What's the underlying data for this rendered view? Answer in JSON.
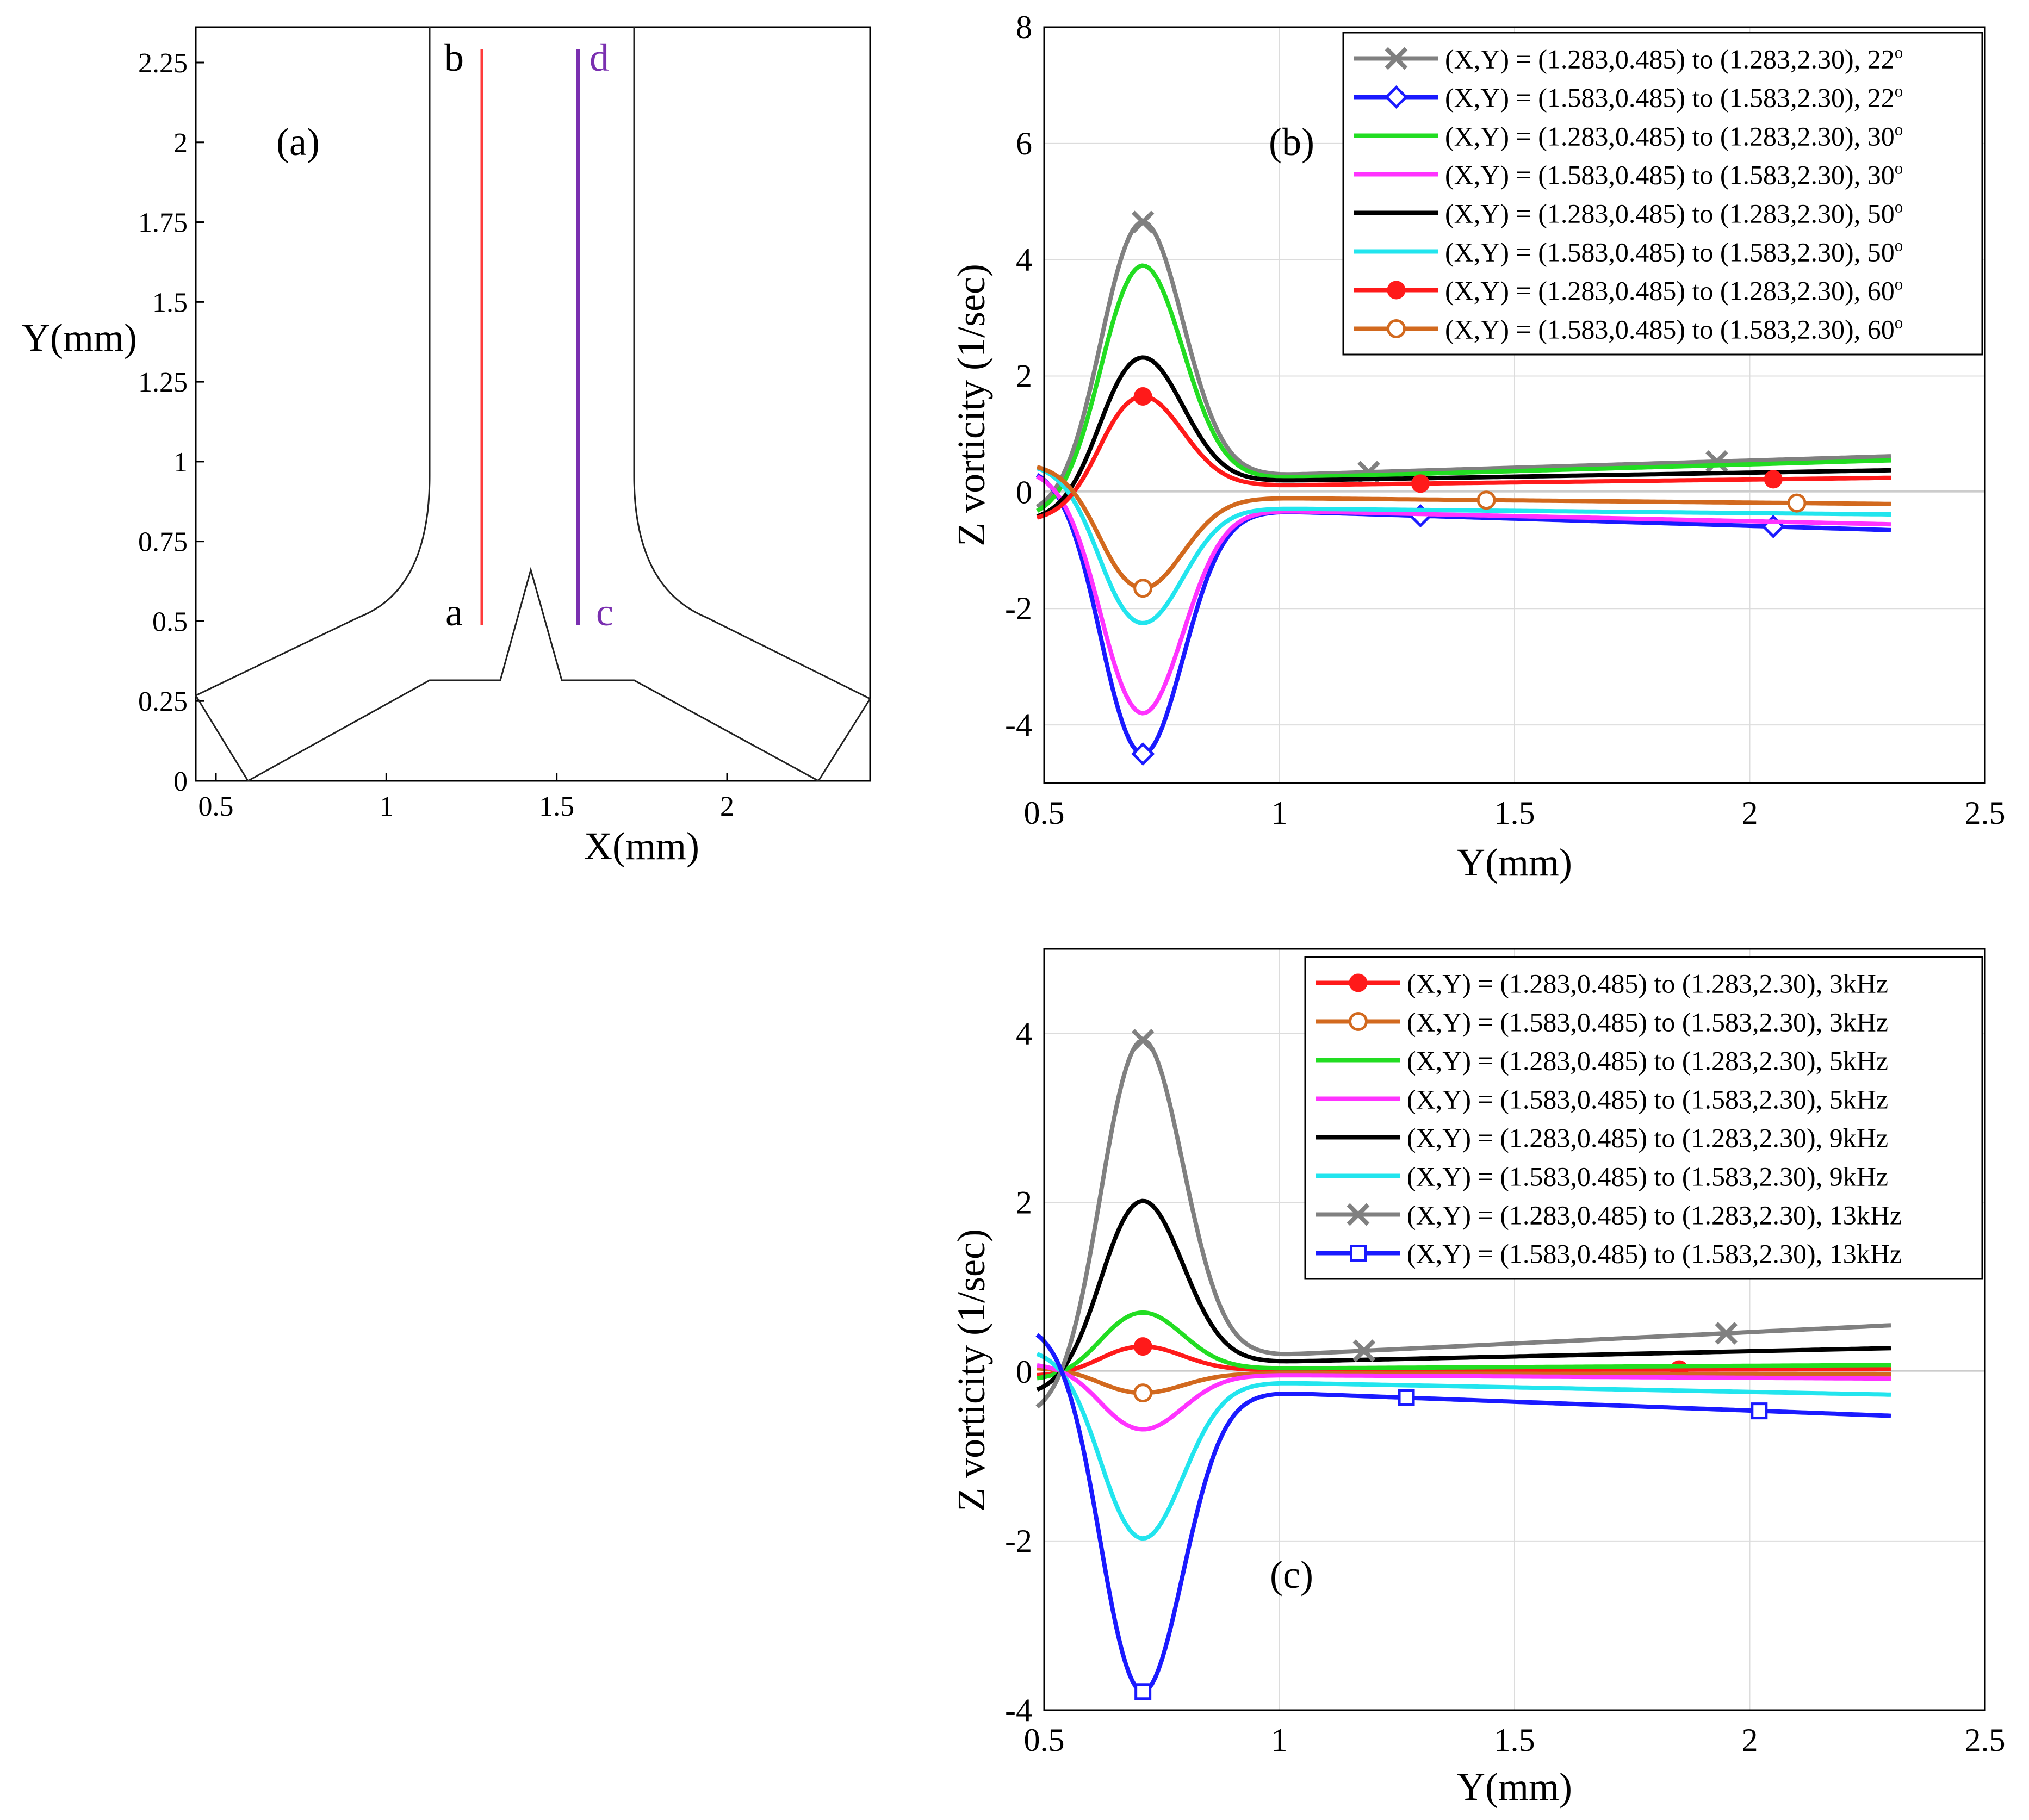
{
  "panels": {
    "a": {
      "label": "(a)",
      "xlabel": "X(mm)",
      "ylabel": "Y(mm)",
      "xticks": [
        "0.5",
        "1",
        "1.5",
        "2"
      ],
      "yticks": [
        "0",
        "0.25",
        "0.5",
        "0.75",
        "1",
        "1.25",
        "1.5",
        "1.75",
        "2",
        "2.25"
      ],
      "line_labels": {
        "a": "a",
        "b": "b",
        "c": "c",
        "d": "d"
      },
      "line_colors": {
        "ab": "#ff3b3b",
        "cd": "#7a2fb0"
      }
    },
    "b": {
      "label": "(b)"
    },
    "c": {
      "label": "(c)"
    }
  },
  "chart_data": [
    {
      "id": "b",
      "type": "line",
      "xlabel": "Y(mm)",
      "ylabel": "Z vorticity (1/sec)",
      "xlim": [
        0.5,
        2.5
      ],
      "ylim": [
        -5,
        8
      ],
      "xticks": [
        "0.5",
        "1",
        "1.5",
        "2",
        "2.5"
      ],
      "yticks": [
        "-4",
        "-2",
        "0",
        "2",
        "4",
        "6",
        "8"
      ],
      "grid": true,
      "legend_position": "top-right",
      "series": [
        {
          "name": "(X,Y) = (1.283,0.485) to (1.283,2.30), 22",
          "sup": "o",
          "color": "#808080",
          "marker": "x",
          "x_range": [
            0.485,
            2.3
          ],
          "start": -0.4,
          "peak": 4.65,
          "valley_y": 0.3,
          "end": 0.62,
          "markers_at": [
            0.71,
            1.19,
            1.93
          ]
        },
        {
          "name": "(X,Y) = (1.583,0.485) to (1.583,2.30), 22",
          "sup": "o",
          "color": "#1a1aff",
          "marker": "diamond",
          "x_range": [
            0.485,
            2.3
          ],
          "start": 0.45,
          "peak": -4.5,
          "valley_y": -0.33,
          "end": -0.65,
          "markers_at": [
            0.71,
            1.3,
            2.05
          ]
        },
        {
          "name": "(X,Y) = (1.283,0.485) to (1.283,2.30), 30",
          "sup": "o",
          "color": "#22dd22",
          "marker": "none",
          "x_range": [
            0.485,
            2.3
          ],
          "start": -0.45,
          "peak": 3.9,
          "valley_y": 0.25,
          "end": 0.55,
          "markers_at": []
        },
        {
          "name": "(X,Y) = (1.583,0.485) to (1.583,2.30), 30",
          "sup": "o",
          "color": "#ff33ff",
          "marker": "none",
          "x_range": [
            0.485,
            2.3
          ],
          "start": 0.4,
          "peak": -3.8,
          "valley_y": -0.32,
          "end": -0.55,
          "markers_at": []
        },
        {
          "name": "(X,Y) = (1.283,0.485) to (1.283,2.30), 50",
          "sup": "o",
          "color": "#000000",
          "marker": "none",
          "x_range": [
            0.485,
            2.3
          ],
          "start": -0.5,
          "peak": 2.32,
          "valley_y": 0.2,
          "end": 0.38,
          "markers_at": []
        },
        {
          "name": "(X,Y) = (1.583,0.485) to (1.583,2.30), 50",
          "sup": "o",
          "color": "#22e5ee",
          "marker": "none",
          "x_range": [
            0.485,
            2.3
          ],
          "start": 0.5,
          "peak": -2.25,
          "valley_y": -0.28,
          "end": -0.38,
          "markers_at": []
        },
        {
          "name": "(X,Y) = (1.283,0.485) to (1.283,2.30), 60",
          "sup": "o",
          "color": "#ff1a1a",
          "marker": "circle-filled",
          "x_range": [
            0.485,
            2.3
          ],
          "start": -0.5,
          "peak": 1.65,
          "valley_y": 0.12,
          "end": 0.25,
          "markers_at": [
            0.71,
            1.3,
            2.05
          ]
        },
        {
          "name": "(X,Y) = (1.583,0.485) to (1.583,2.30), 60",
          "sup": "o",
          "color": "#d2691e",
          "marker": "circle-open",
          "x_range": [
            0.485,
            2.3
          ],
          "start": 0.5,
          "peak": -1.65,
          "valley_y": -0.1,
          "end": -0.2,
          "markers_at": [
            0.71,
            1.44,
            2.1
          ]
        }
      ]
    },
    {
      "id": "c",
      "type": "line",
      "xlabel": "Y(mm)",
      "ylabel": "Z vorticity (1/sec)",
      "xlim": [
        0.5,
        2.5
      ],
      "ylim": [
        -4,
        5
      ],
      "xticks": [
        "0.5",
        "1",
        "1.5",
        "2",
        "2.5"
      ],
      "yticks": [
        "-4",
        "-2",
        "0",
        "2",
        "4"
      ],
      "grid": true,
      "legend_position": "top-right",
      "series": [
        {
          "name": "(X,Y) = (1.283,0.485) to (1.283,2.30), 3kHz",
          "color": "#ff1a1a",
          "marker": "circle-filled",
          "x_range": [
            0.485,
            2.3
          ],
          "start": -0.05,
          "peak": 0.3,
          "valley_y": 0.02,
          "end": 0.03,
          "markers_at": [
            0.71,
            1.85
          ]
        },
        {
          "name": "(X,Y) = (1.583,0.485) to (1.583,2.30), 3kHz",
          "color": "#d2691e",
          "marker": "circle-open",
          "x_range": [
            0.485,
            2.3
          ],
          "start": 0.05,
          "peak": -0.25,
          "valley_y": -0.02,
          "end": -0.03,
          "markers_at": [
            0.71
          ]
        },
        {
          "name": "(X,Y) = (1.283,0.485) to (1.283,2.30), 5kHz",
          "color": "#22dd22",
          "marker": "none",
          "x_range": [
            0.485,
            2.3
          ],
          "start": -0.1,
          "peak": 0.7,
          "valley_y": 0.04,
          "end": 0.08,
          "markers_at": []
        },
        {
          "name": "(X,Y) = (1.583,0.485) to (1.583,2.30), 5kHz",
          "color": "#ff33ff",
          "marker": "none",
          "x_range": [
            0.485,
            2.3
          ],
          "start": 0.1,
          "peak": -0.68,
          "valley_y": -0.04,
          "end": -0.08,
          "markers_at": []
        },
        {
          "name": "(X,Y) = (1.283,0.485) to (1.283,2.30), 9kHz",
          "color": "#000000",
          "marker": "none",
          "x_range": [
            0.485,
            2.3
          ],
          "start": -0.28,
          "peak": 2.02,
          "valley_y": 0.12,
          "end": 0.28,
          "markers_at": []
        },
        {
          "name": "(X,Y) = (1.583,0.485) to (1.583,2.30), 9kHz",
          "color": "#22e5ee",
          "marker": "none",
          "x_range": [
            0.485,
            2.3
          ],
          "start": 0.28,
          "peak": -1.97,
          "valley_y": -0.13,
          "end": -0.27,
          "markers_at": []
        },
        {
          "name": "(X,Y) = (1.283,0.485) to (1.283,2.30), 13kHz",
          "color": "#808080",
          "marker": "x",
          "x_range": [
            0.485,
            2.3
          ],
          "start": -0.55,
          "peak": 3.92,
          "valley_y": 0.2,
          "end": 0.55,
          "markers_at": [
            0.71,
            1.18,
            1.95
          ]
        },
        {
          "name": "(X,Y) = (1.583,0.485) to (1.583,2.30), 13kHz",
          "color": "#1a1aff",
          "marker": "square-open",
          "x_range": [
            0.485,
            2.3
          ],
          "start": 0.57,
          "peak": -3.78,
          "valley_y": -0.25,
          "end": -0.52,
          "markers_at": [
            0.71,
            1.27,
            2.02
          ]
        }
      ]
    }
  ]
}
